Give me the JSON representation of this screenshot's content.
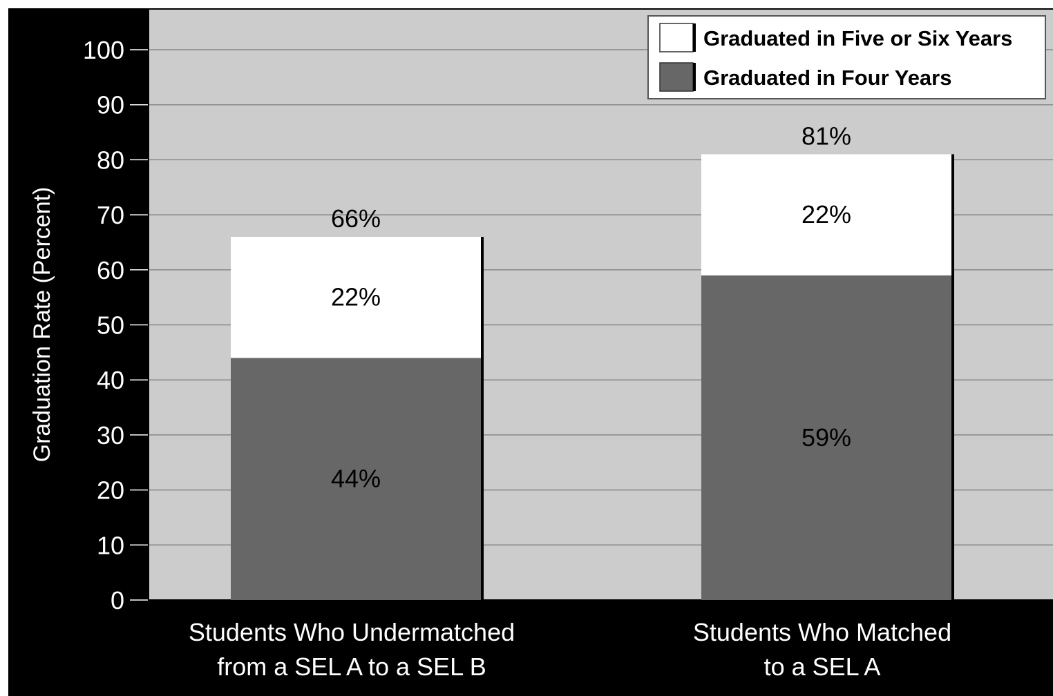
{
  "chart_data": {
    "type": "bar",
    "stacked": true,
    "categories": [
      [
        "Students Who Undermatched",
        "from a SEL A to a SEL B"
      ],
      [
        "Students Who Matched",
        "to a SEL A"
      ]
    ],
    "series": [
      {
        "name": "Graduated in Four Years",
        "values": [
          44,
          59
        ],
        "labels": [
          "44%",
          "59%"
        ],
        "color": "#676767"
      },
      {
        "name": "Graduated in Five or Six Years",
        "values": [
          22,
          22
        ],
        "labels": [
          "22%",
          "22%"
        ],
        "color": "#ffffff"
      }
    ],
    "totals": [
      66,
      81
    ],
    "total_labels": [
      "66%",
      "81%"
    ],
    "ylabel": "Graduation Rate (Percent)",
    "ylim": [
      0,
      100
    ],
    "yticks": [
      0,
      10,
      20,
      30,
      40,
      50,
      60,
      70,
      80,
      90,
      100
    ],
    "grid": true,
    "legend_position": "top-right",
    "legend_order": [
      "Graduated in Five or Six Years",
      "Graduated in Four Years"
    ]
  },
  "colors": {
    "frame": "#000000",
    "plot_background": "#cccccc",
    "gridline": "#888888"
  }
}
